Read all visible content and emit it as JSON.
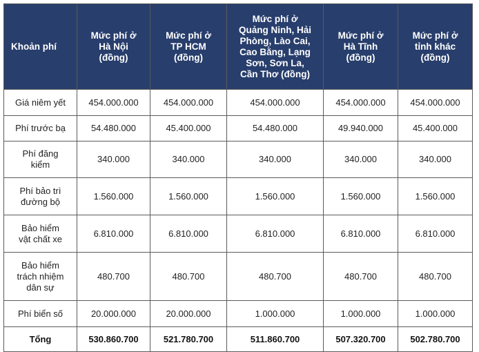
{
  "table": {
    "headers": [
      "Khoản phí",
      "Mức phí ở\nHà Nội\n(đồng)",
      "Mức phí ở\nTP HCM\n(đồng)",
      "Mức phí ở\nQuảng Ninh, Hải\nPhòng, Lào Cai,\nCao Bằng, Lạng\nSơn, Sơn La,\nCần Thơ (đồng)",
      "Mức phí ở\nHà Tĩnh\n(đồng)",
      "Mức phí ở\ntỉnh khác\n(đồng)"
    ],
    "rows": [
      {
        "label": "Giá niêm yết",
        "values": [
          "454.000.000",
          "454.000.000",
          "454.000.000",
          "454.000.000",
          "454.000.000"
        ]
      },
      {
        "label": "Phí trước bạ",
        "values": [
          "54.480.000",
          "45.400.000",
          "54.480.000",
          "49.940.000",
          "45.400.000"
        ]
      },
      {
        "label": "Phí đăng\nkiểm",
        "values": [
          "340.000",
          "340.000",
          "340.000",
          "340.000",
          "340.000"
        ]
      },
      {
        "label": "Phí bảo trì\nđường bộ",
        "values": [
          "1.560.000",
          "1.560.000",
          "1.560.000",
          "1.560.000",
          "1.560.000"
        ]
      },
      {
        "label": "Bảo hiểm\nvật chất xe",
        "values": [
          "6.810.000",
          "6.810.000",
          "6.810.000",
          "6.810.000",
          "6.810.000"
        ]
      },
      {
        "label": "Bảo hiểm\ntrách nhiệm\ndân sự",
        "values": [
          "480.700",
          "480.700",
          "480.700",
          "480.700",
          "480.700"
        ]
      },
      {
        "label": "Phí biển số",
        "values": [
          "20.000.000",
          "20.000.000",
          "1.000.000",
          "1.000.000",
          "1.000.000"
        ]
      },
      {
        "label": "Tổng",
        "values": [
          "530.860.700",
          "521.780.700",
          "511.860.700",
          "507.320.700",
          "502.780.700"
        ]
      }
    ]
  }
}
